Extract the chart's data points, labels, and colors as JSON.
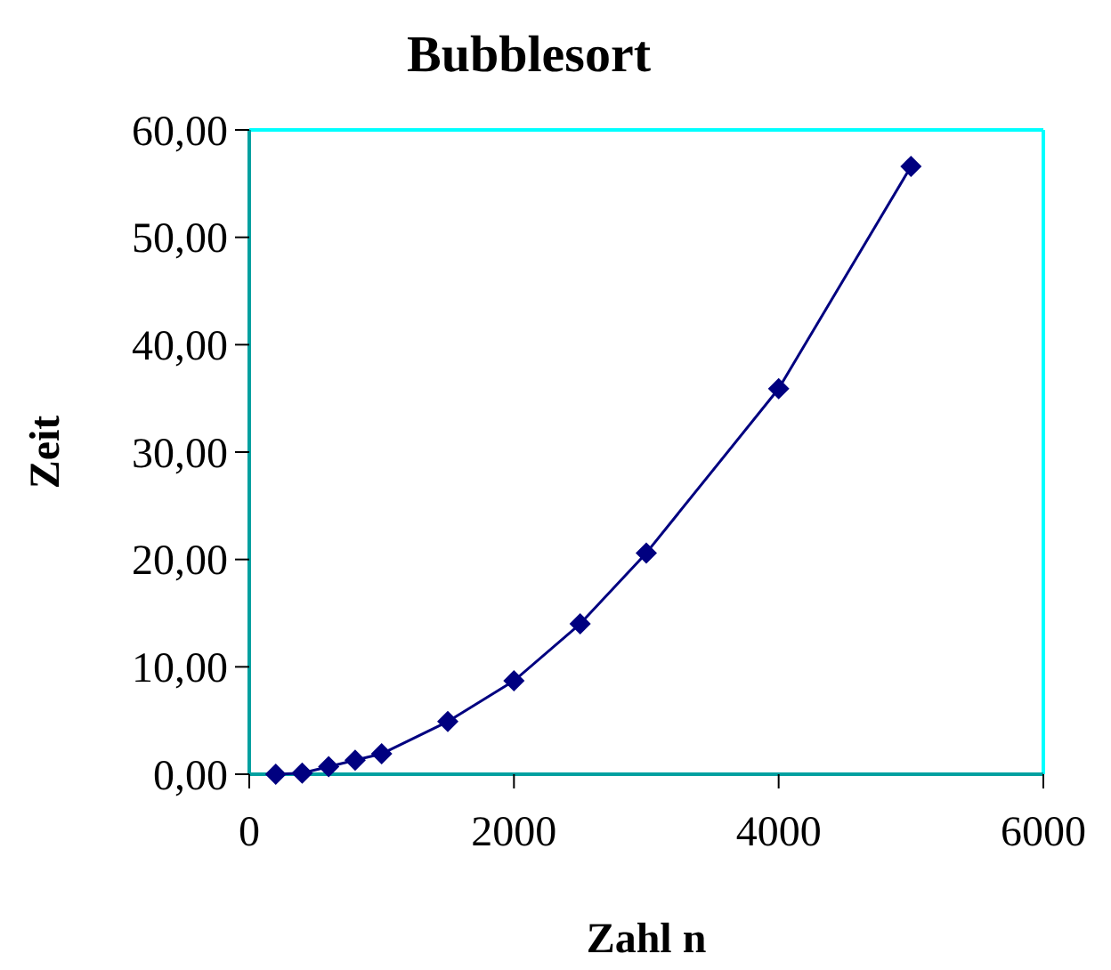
{
  "chart_data": {
    "type": "line",
    "title": "Bubblesort",
    "xlabel": "Zahl n",
    "ylabel": "Zeit",
    "x": [
      200,
      400,
      600,
      800,
      1000,
      1500,
      2000,
      2500,
      3000,
      4000,
      5000
    ],
    "series": [
      {
        "color": "#000080",
        "values": [
          0,
          0.1,
          0.7,
          1.3,
          1.9,
          4.9,
          8.7,
          14.0,
          20.6,
          35.9,
          56.6
        ]
      }
    ],
    "xlim": [
      0,
      6000
    ],
    "xticks": [
      0,
      2000,
      4000,
      6000
    ],
    "ylim": [
      0,
      60
    ],
    "yticks": [
      {
        "value": 0,
        "label": "0,00"
      },
      {
        "value": 10,
        "label": "10,00"
      },
      {
        "value": 20,
        "label": "20,00"
      },
      {
        "value": 30,
        "label": "30,00"
      },
      {
        "value": 40,
        "label": "40,00"
      },
      {
        "value": 50,
        "label": "50,00"
      },
      {
        "value": 60,
        "label": "60,00"
      }
    ],
    "grid": false,
    "marker": "diamond",
    "line_style": "solid"
  }
}
